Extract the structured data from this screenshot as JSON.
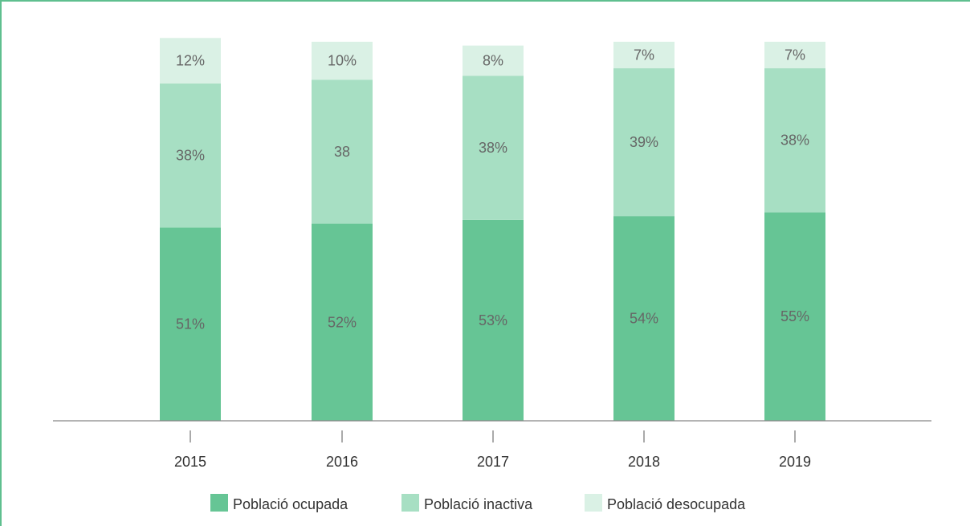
{
  "chart_data": {
    "type": "bar",
    "stacked": true,
    "categories": [
      "2015",
      "2016",
      "2017",
      "2018",
      "2019"
    ],
    "series": [
      {
        "name": "Població ocupada",
        "color": "#66c595",
        "values": [
          51,
          52,
          53,
          54,
          55
        ],
        "labels": [
          "51%",
          "52%",
          "53%",
          "54%",
          "55%"
        ]
      },
      {
        "name": "Població inactiva",
        "color": "#a7dfc3",
        "values": [
          38,
          38,
          38,
          39,
          38
        ],
        "labels": [
          "38%",
          "38",
          "38%",
          "39%",
          "38%"
        ]
      },
      {
        "name": "Població desocupada",
        "color": "#daf1e5",
        "values": [
          12,
          10,
          8,
          7,
          7
        ],
        "labels": [
          "12%",
          "10%",
          "8%",
          "7%",
          "7%"
        ]
      }
    ],
    "ylim": [
      0,
      100
    ],
    "grid": false,
    "legend_position": "bottom"
  }
}
